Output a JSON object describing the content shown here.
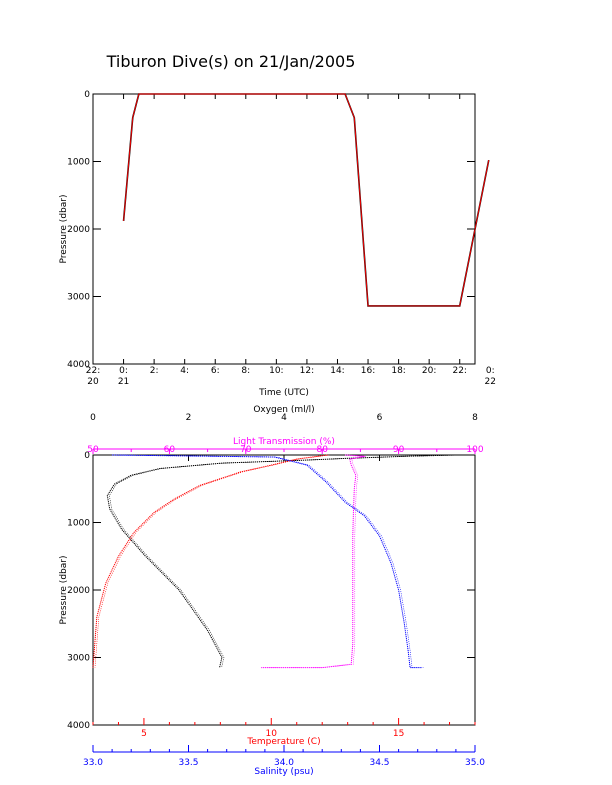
{
  "title": "Tiburon Dive(s) on 21/Jan/2005",
  "colors": {
    "black": "#000000",
    "red": "#ff0000",
    "magenta": "#ff00ff",
    "blue": "#0000ff"
  },
  "chart_data": [
    {
      "type": "line",
      "xlabel": "Time (UTC)",
      "ylabel": "Pressure (dbar)",
      "xlim_hours": [
        22,
        47
      ],
      "ylim": [
        4000,
        0
      ],
      "x_ticks": [
        {
          "x": 22,
          "label": "22:\n20"
        },
        {
          "x": 24,
          "label": "0:\n21"
        },
        {
          "x": 26,
          "label": "2:"
        },
        {
          "x": 28,
          "label": "4:"
        },
        {
          "x": 30,
          "label": "6:"
        },
        {
          "x": 32,
          "label": "8:"
        },
        {
          "x": 34,
          "label": "10:"
        },
        {
          "x": 36,
          "label": "12:"
        },
        {
          "x": 38,
          "label": "14:"
        },
        {
          "x": 40,
          "label": "16:"
        },
        {
          "x": 42,
          "label": "18:"
        },
        {
          "x": 44,
          "label": "20:"
        },
        {
          "x": 46,
          "label": "22:"
        },
        {
          "x": 48,
          "label": "0:\n22"
        }
      ],
      "y_ticks": [
        0,
        1000,
        2000,
        3000,
        4000
      ],
      "series": [
        {
          "color": "#000000",
          "x": [
            24.0,
            24.6,
            25.0,
            38.5,
            39.1,
            40.0,
            46.0,
            47.9
          ],
          "y": [
            1880,
            350,
            0,
            0,
            350,
            3140,
            3140,
            980
          ]
        },
        {
          "color": "#ff0000",
          "x": [
            24.0,
            24.6,
            25.0,
            38.5,
            39.1,
            40.0,
            46.0,
            47.9
          ],
          "y": [
            1880,
            350,
            0,
            0,
            350,
            3140,
            3140,
            980
          ]
        }
      ]
    },
    {
      "type": "line",
      "ylabel": "Pressure (dbar)",
      "ylim": [
        4000,
        0
      ],
      "y_ticks": [
        0,
        1000,
        2000,
        3000,
        4000
      ],
      "axes": {
        "oxygen": {
          "label": "Oxygen (ml/l)",
          "range": [
            0,
            8
          ],
          "ticks": [
            0,
            2,
            4,
            6,
            8
          ],
          "color": "#000000"
        },
        "light": {
          "label": "Light Transmission (%)",
          "range": [
            50,
            100
          ],
          "ticks": [
            50,
            60,
            70,
            80,
            90,
            100
          ],
          "color": "#ff00ff"
        },
        "temperature": {
          "label": "Temperature (C)",
          "range": [
            3,
            18
          ],
          "ticks": [
            5,
            10,
            15
          ],
          "color": "#ff0000"
        },
        "salinity": {
          "label": "Salinity (psu)",
          "range": [
            33.0,
            35.0
          ],
          "ticks": [
            "33.0",
            "33.5",
            "34.0",
            "34.5",
            "35.0"
          ],
          "color": "#0000ff"
        }
      },
      "series": [
        {
          "axis": "oxygen",
          "color": "#000000",
          "x": [
            7.6,
            6.5,
            5.3,
            4.3,
            2.7,
            1.4,
            0.8,
            0.45,
            0.3,
            0.35,
            0.6,
            1.1,
            1.8,
            2.4,
            2.7,
            2.65
          ],
          "y": [
            0,
            20,
            50,
            80,
            120,
            200,
            300,
            430,
            600,
            800,
            1100,
            1500,
            2000,
            2600,
            3000,
            3150
          ]
        },
        {
          "axis": "temperature",
          "color": "#ff0000",
          "x": [
            12.2,
            11.0,
            10.0,
            8.8,
            7.2,
            6.2,
            5.4,
            4.6,
            4.0,
            3.5,
            3.15,
            3.05,
            3.0
          ],
          "y": [
            0,
            60,
            150,
            250,
            450,
            650,
            850,
            1150,
            1500,
            1900,
            2400,
            2900,
            3150
          ]
        },
        {
          "axis": "light",
          "color": "#ff00ff",
          "x": [
            83.0,
            85.5,
            83.6,
            83.8,
            84.4,
            84.2,
            84.1,
            84.0,
            84.0,
            84.0,
            83.8,
            80.0,
            72.0
          ],
          "y": [
            0,
            20,
            60,
            150,
            300,
            500,
            800,
            1200,
            2000,
            2800,
            3100,
            3150,
            3150
          ]
        },
        {
          "axis": "salinity",
          "color": "#0000ff",
          "x": [
            33.1,
            33.95,
            34.12,
            34.22,
            34.32,
            34.42,
            34.5,
            34.56,
            34.6,
            34.63,
            34.65,
            34.66,
            34.72
          ],
          "y": [
            0,
            30,
            150,
            400,
            700,
            900,
            1200,
            1600,
            2000,
            2500,
            2900,
            3150,
            3150
          ]
        }
      ]
    }
  ]
}
